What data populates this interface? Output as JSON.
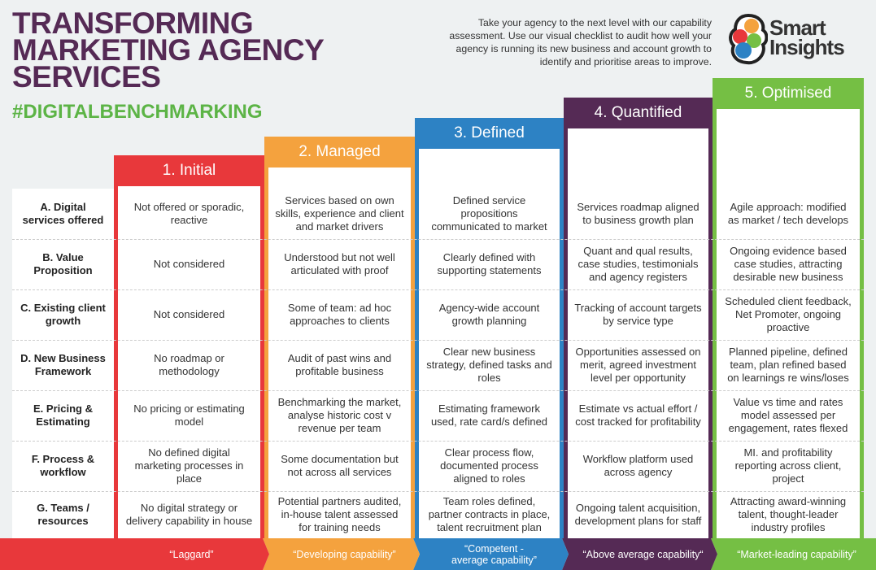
{
  "title": "TRANSFORMING MARKETING AGENCY SERVICES",
  "hashtag": "#DIGITALBENCHMARKING",
  "intro": "Take your agency to the next level with our capability assessment. Use our visual checklist to audit how well your agency is running its new business and account growth to identify and prioritise areas to improve.",
  "logo": {
    "text": "Smart Insights"
  },
  "colors": {
    "title": "#552a55",
    "hashtag": "#5cb446",
    "background": "#eef1f2"
  },
  "levels": [
    {
      "label": "1. Initial",
      "color": "#e8383b",
      "band": "“Laggard”"
    },
    {
      "label": "2. Managed",
      "color": "#f4a23e",
      "band": "“Developing capability”"
    },
    {
      "label": "3. Defined",
      "color": "#2d82c4",
      "band": "“Competent - average capability”"
    },
    {
      "label": "4. Quantified",
      "color": "#552a55",
      "band": "“Above average capability“"
    },
    {
      "label": "5. Optimised",
      "color": "#75bf44",
      "band": "“Market-leading capability”"
    }
  ],
  "rows": [
    {
      "label": "A. Digital services offered",
      "cells": [
        "Not offered or sporadic, reactive",
        "Services based on own skills, experience and client and market drivers",
        "Defined service propositions communicated to market",
        "Services roadmap aligned to business growth plan",
        "Agile approach: modified as market / tech develops"
      ]
    },
    {
      "label": "B. Value Proposition",
      "cells": [
        "Not considered",
        "Understood but not well articulated with proof",
        "Clearly defined with supporting statements",
        "Quant and qual results, case studies, testimonials and agency registers",
        "Ongoing evidence based case studies, attracting desirable new business"
      ]
    },
    {
      "label": "C. Existing  client growth",
      "cells": [
        "Not considered",
        "Some of team: ad hoc approaches to clients",
        "Agency-wide account growth planning",
        "Tracking of account targets by service type",
        "Scheduled client feedback, Net Promoter, ongoing proactive"
      ]
    },
    {
      "label": "D. New Business Framework",
      "cells": [
        "No roadmap or methodology",
        "Audit of past wins and profitable business",
        "Clear new business strategy, defined tasks and roles",
        "Opportunities assessed on merit, agreed investment level per opportunity",
        "Planned pipeline, defined team, plan refined based on learnings re wins/loses"
      ]
    },
    {
      "label": "E. Pricing & Estimating",
      "cells": [
        "No pricing or estimating model",
        "Benchmarking the market, analyse historic cost v revenue per team",
        "Estimating framework used, rate card/s defined",
        "Estimate vs actual effort / cost tracked for profitability",
        "Value vs time and rates model assessed per engagement, rates flexed"
      ]
    },
    {
      "label": "F. Process & workflow",
      "cells": [
        "No defined digital marketing processes in place",
        "Some documentation but not across all services",
        "Clear process flow, documented process aligned to roles",
        "Workflow platform used across agency",
        "MI. and profitability reporting across client, project"
      ]
    },
    {
      "label": "G. Teams / resources",
      "cells": [
        "No digital strategy or delivery capability in house",
        "Potential partners audited, in-house talent assessed for training needs",
        "Team roles defined, partner contracts in place, talent recruitment plan",
        "Ongoing talent acquisition, development plans for staff",
        "Attracting award-winning talent, thought-leader industry profiles"
      ]
    }
  ]
}
